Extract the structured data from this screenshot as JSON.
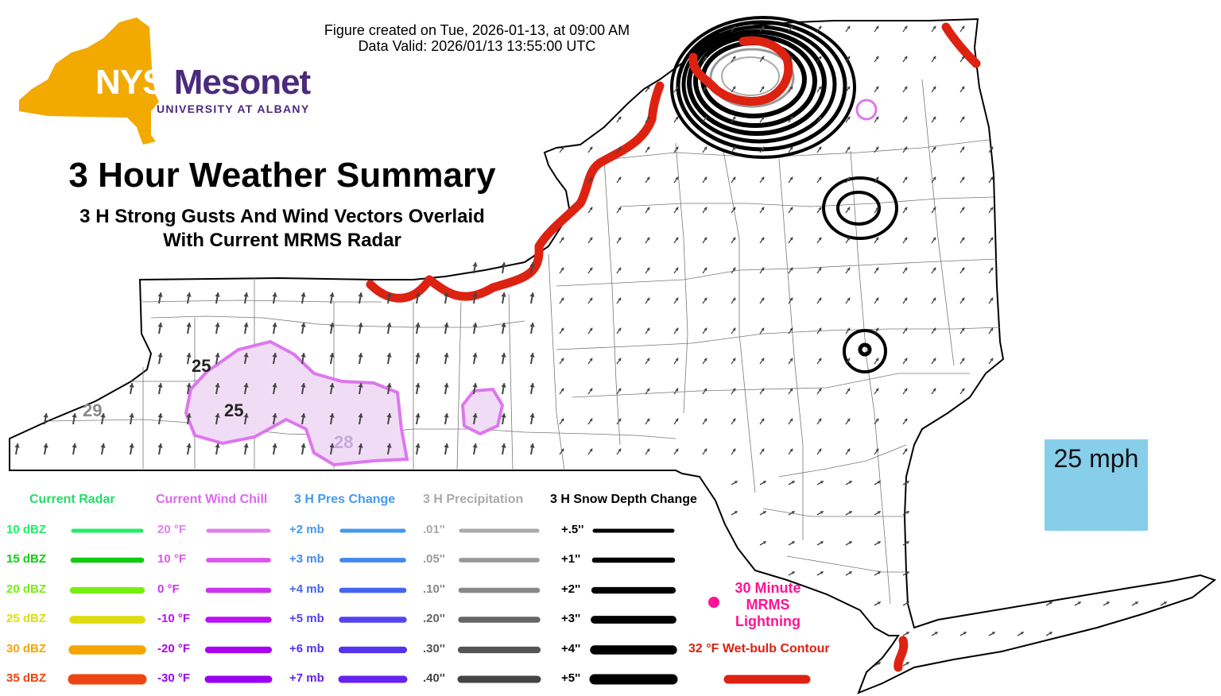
{
  "header": {
    "created": "Figure created on Tue, 2026-01-13, at 09:00 AM",
    "valid": "Data Valid: 2026/01/13 13:55:00 UTC"
  },
  "logo": {
    "nys": "NYS",
    "mesonet": "Mesonet",
    "sub": "UNIVERSITY AT ALBANY",
    "state_color": "#f2a900",
    "text_color": "#4b2a7b"
  },
  "title": "3 Hour Weather Summary",
  "subtitle_line1": "3 H Strong Gusts And Wind Vectors Overlaid",
  "subtitle_line2": "With Current MRMS Radar",
  "scale_label": "25 mph",
  "gust_labels": [
    "25",
    "25",
    "29",
    "28"
  ],
  "legend": {
    "radar": {
      "title": "Current Radar",
      "title_color": "#22dd66",
      "items": [
        {
          "label": "10 dBZ",
          "color": "#22ee66"
        },
        {
          "label": "15 dBZ",
          "color": "#11cc11"
        },
        {
          "label": "20 dBZ",
          "color": "#77ee11"
        },
        {
          "label": "25 dBZ",
          "color": "#dddd11"
        },
        {
          "label": "30 dBZ",
          "color": "#f5a500"
        },
        {
          "label": "35 dBZ",
          "color": "#ee4411"
        }
      ]
    },
    "windchill": {
      "title": "Current Wind Chill",
      "title_color": "#dd66ee",
      "items": [
        {
          "label": "20 °F",
          "color": "#e080ee"
        },
        {
          "label": "10 °F",
          "color": "#dd55ee"
        },
        {
          "label": "0 °F",
          "color": "#cc33ee"
        },
        {
          "label": "-10 °F",
          "color": "#bb11ee"
        },
        {
          "label": "-20 °F",
          "color": "#aa00ee"
        },
        {
          "label": "-30 °F",
          "color": "#9900ee"
        }
      ]
    },
    "pressure": {
      "title": "3 H Pres Change",
      "title_color": "#4499ee",
      "items": [
        {
          "label": "+2 mb",
          "color": "#4499ee"
        },
        {
          "label": "+3 mb",
          "color": "#4488ee"
        },
        {
          "label": "+4 mb",
          "color": "#4466ee"
        },
        {
          "label": "+5 mb",
          "color": "#5544ee"
        },
        {
          "label": "+6 mb",
          "color": "#5533ee"
        },
        {
          "label": "+7 mb",
          "color": "#6622ee"
        }
      ]
    },
    "precip": {
      "title": "3 H Precipitation",
      "title_color": "#aaaaaa",
      "items": [
        {
          "label": ".01''",
          "color": "#aaaaaa"
        },
        {
          "label": ".05''",
          "color": "#999999"
        },
        {
          "label": ".10''",
          "color": "#888888"
        },
        {
          "label": ".20''",
          "color": "#666666"
        },
        {
          "label": ".30''",
          "color": "#555555"
        },
        {
          "label": ".40''",
          "color": "#444444"
        }
      ]
    },
    "snow": {
      "title": "3 H Snow Depth Change",
      "title_color": "#000000",
      "items": [
        {
          "label": "+.5''",
          "color": "#000000"
        },
        {
          "label": "+1''",
          "color": "#000000"
        },
        {
          "label": "+2''",
          "color": "#000000"
        },
        {
          "label": "+3''",
          "color": "#000000"
        },
        {
          "label": "+4''",
          "color": "#000000"
        },
        {
          "label": "+5''",
          "color": "#000000"
        }
      ]
    },
    "lightning": {
      "line1": "30 Minute",
      "line2": "MRMS",
      "line3": "Lightning",
      "color": "#ff1493"
    },
    "wetbulb": {
      "label": "32 °F Wet-bulb Contour",
      "color": "#dd2211"
    }
  },
  "colors": {
    "windchill_fill": "#f1dcf6",
    "windchill_line": "#dd77ee",
    "wetbulb_line": "#dd2211",
    "snow_line": "#000000",
    "vector_color": "#444444",
    "scale_box": "#87ceeb"
  }
}
